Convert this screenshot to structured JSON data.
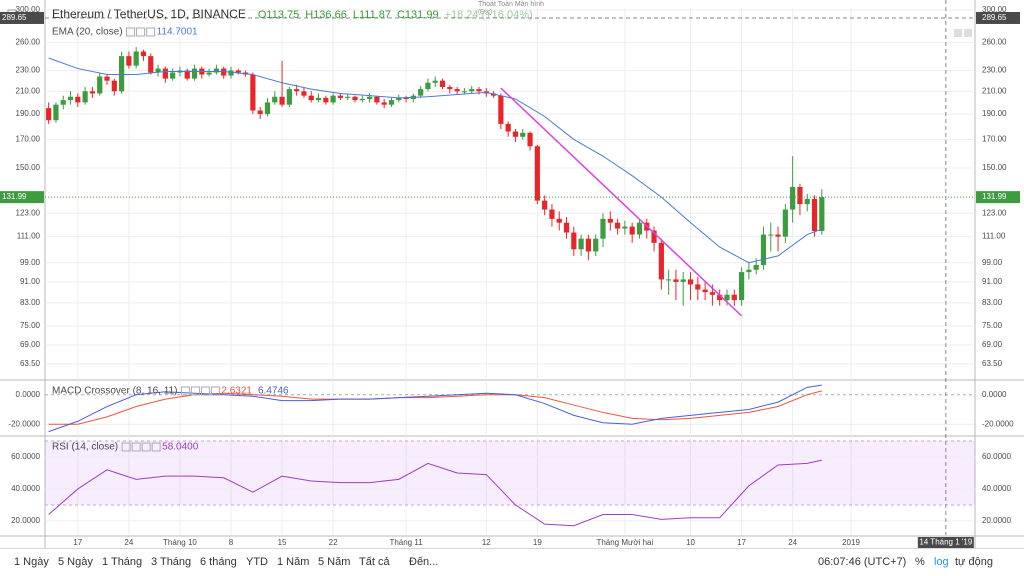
{
  "chart_data": {
    "type": "candlestick",
    "title": "Ethereum / TetherUS, 1D, BINANCE",
    "ohlc_legend": [
      "O113.75",
      "H136.66",
      "L111.87",
      "C131.99"
    ],
    "change": "+18.24 (+16.04%)",
    "tooltip": "Thoát Toàn Màn hình",
    "tooltip_key": "(Esc)",
    "up_color": "#3d9b40",
    "down_color": "#e8262a",
    "log_scale": true,
    "grid": true,
    "xlim": [
      -0.5,
      127
    ],
    "xticks": [
      {
        "value": 4,
        "label": "17"
      },
      {
        "value": 11,
        "label": "24"
      },
      {
        "value": 18,
        "label": "Tháng 10"
      },
      {
        "value": 25,
        "label": "8"
      },
      {
        "value": 32,
        "label": "15"
      },
      {
        "value": 39,
        "label": "22"
      },
      {
        "value": 49,
        "label": "Tháng 11"
      },
      {
        "value": 60,
        "label": "12"
      },
      {
        "value": 67,
        "label": "19"
      },
      {
        "value": 79,
        "label": "Tháng Mười hai"
      },
      {
        "value": 88,
        "label": "10"
      },
      {
        "value": 95,
        "label": "17"
      },
      {
        "value": 102,
        "label": "24"
      },
      {
        "value": 110,
        "label": "2019"
      }
    ],
    "ylim": [
      59.7,
      302.6
    ],
    "yticks": [
      {
        "value": 300,
        "label": "300.00"
      },
      {
        "value": 260,
        "label": "260.00"
      },
      {
        "value": 230,
        "label": "230.00"
      },
      {
        "value": 210,
        "label": "210.00"
      },
      {
        "value": 190,
        "label": "190.00"
      },
      {
        "value": 170,
        "label": "170.00"
      },
      {
        "value": 150,
        "label": "150.00"
      },
      {
        "value": 123,
        "label": "123.00"
      },
      {
        "value": 111,
        "label": "111.00"
      },
      {
        "value": 99,
        "label": "99.00"
      },
      {
        "value": 91,
        "label": "91.00"
      },
      {
        "value": 83,
        "label": "83.00"
      },
      {
        "value": 75,
        "label": "75.00"
      },
      {
        "value": 69,
        "label": "69.00"
      },
      {
        "value": 63.5,
        "label": "63.50"
      }
    ],
    "open": [
      195,
      185,
      198,
      202,
      205,
      200,
      210,
      208,
      224,
      220,
      210,
      245,
      235,
      250,
      245,
      228,
      232,
      222,
      228,
      230,
      222,
      232,
      226,
      228,
      232,
      225,
      230,
      228,
      226,
      193,
      190,
      200,
      205,
      198,
      212,
      210,
      206,
      202,
      204,
      200,
      206,
      204,
      205,
      202,
      203,
      205,
      200,
      198,
      202,
      204,
      203,
      206,
      212,
      218,
      220,
      214,
      212,
      210,
      210,
      212,
      210,
      208,
      206,
      182,
      176,
      172,
      175,
      165,
      130,
      125,
      120,
      118,
      113,
      105,
      110,
      104,
      110,
      120,
      118,
      115,
      116,
      112,
      118,
      114,
      108,
      92,
      92,
      91,
      92,
      90,
      88,
      87,
      86,
      84,
      86,
      84,
      95,
      96,
      98,
      112,
      112,
      111,
      125,
      138,
      128,
      131,
      113.75
    ],
    "high": [
      200,
      200,
      206,
      210,
      208,
      214,
      214,
      228,
      226,
      222,
      250,
      250,
      255,
      252,
      248,
      236,
      234,
      232,
      234,
      232,
      236,
      234,
      232,
      236,
      234,
      234,
      232,
      230,
      228,
      196,
      204,
      210,
      240,
      214,
      216,
      214,
      210,
      208,
      206,
      208,
      208,
      208,
      206,
      206,
      208,
      206,
      203,
      204,
      207,
      206,
      208,
      215,
      222,
      224,
      222,
      216,
      214,
      213,
      215,
      214,
      213,
      210,
      208,
      184,
      178,
      178,
      176,
      166,
      133,
      128,
      124,
      121,
      116,
      112,
      112,
      112,
      123,
      124,
      120,
      119,
      118,
      120,
      120,
      116,
      110,
      96,
      96,
      95,
      95,
      93,
      91,
      90,
      88,
      88,
      88,
      97,
      99,
      101,
      116,
      118,
      116,
      128,
      158,
      140,
      134,
      133,
      136.66
    ],
    "low": [
      182,
      183,
      194,
      198,
      196,
      198,
      204,
      206,
      216,
      206,
      208,
      232,
      232,
      240,
      226,
      224,
      218,
      220,
      224,
      220,
      220,
      222,
      224,
      226,
      222,
      222,
      226,
      224,
      190,
      186,
      188,
      198,
      196,
      196,
      206,
      204,
      200,
      200,
      198,
      198,
      202,
      202,
      200,
      200,
      200,
      198,
      195,
      196,
      200,
      200,
      200,
      204,
      210,
      214,
      212,
      208,
      207,
      207,
      208,
      207,
      205,
      204,
      178,
      172,
      168,
      170,
      162,
      128,
      122,
      116,
      114,
      110,
      102,
      102,
      100,
      102,
      106,
      114,
      112,
      112,
      108,
      110,
      110,
      104,
      88,
      86,
      84,
      82,
      84,
      84,
      84,
      82,
      82,
      82,
      82,
      82,
      92,
      94,
      96,
      104,
      104,
      108,
      118,
      122,
      124,
      111,
      111.87
    ],
    "close": [
      185,
      198,
      202,
      205,
      200,
      210,
      208,
      224,
      220,
      210,
      245,
      235,
      250,
      245,
      228,
      232,
      222,
      228,
      230,
      222,
      232,
      226,
      228,
      232,
      225,
      230,
      228,
      226,
      193,
      190,
      200,
      205,
      198,
      212,
      210,
      206,
      202,
      204,
      200,
      206,
      204,
      205,
      202,
      203,
      205,
      200,
      198,
      202,
      204,
      203,
      206,
      212,
      218,
      220,
      214,
      212,
      210,
      210,
      212,
      210,
      208,
      206,
      182,
      176,
      172,
      175,
      165,
      130,
      125,
      120,
      118,
      113,
      105,
      110,
      104,
      110,
      120,
      118,
      115,
      116,
      112,
      118,
      114,
      108,
      92,
      92,
      91,
      92,
      90,
      88,
      87,
      86,
      84,
      86,
      84,
      95,
      96,
      98,
      112,
      112,
      111,
      125,
      138,
      128,
      131,
      113.75,
      131.99
    ],
    "ema": {
      "name": "EMA (20, close)",
      "color": "#4a7bd0",
      "x": [
        0,
        4,
        8,
        12,
        16,
        20,
        24,
        28,
        32,
        36,
        40,
        44,
        48,
        52,
        56,
        60,
        64,
        68,
        72,
        76,
        80,
        84,
        88,
        92,
        96,
        100,
        104,
        106
      ],
      "values": [
        243,
        232,
        226,
        226,
        229,
        229,
        229,
        226,
        218,
        212,
        208,
        206,
        204,
        205,
        207,
        209,
        203,
        188,
        170,
        158,
        145,
        132,
        118,
        106,
        99,
        102,
        112,
        114.7001
      ]
    },
    "trendline": {
      "color": "#e040e0",
      "x": [
        62,
        95
      ],
      "y": [
        213,
        78.4
      ]
    },
    "crosshair": {
      "x": 123,
      "x_label": "14 Tháng 1 '19",
      "y": 289.65
    },
    "macd": {
      "name": "MACD Crossover (8, 16, 11)",
      "x": [
        0,
        4,
        8,
        12,
        16,
        20,
        24,
        28,
        32,
        36,
        40,
        44,
        48,
        52,
        56,
        60,
        64,
        68,
        72,
        76,
        80,
        84,
        88,
        92,
        96,
        100,
        104,
        106
      ],
      "series": [
        {
          "color": "#e8573f",
          "values": [
            -20,
            -20,
            -15,
            -8,
            -3,
            0,
            1,
            0,
            -1,
            -3,
            -3,
            -3,
            -2,
            -2,
            -1,
            0,
            0,
            -2,
            -7,
            -12,
            -16,
            -17,
            -16,
            -14,
            -12,
            -8,
            0,
            2.6321
          ]
        },
        {
          "color": "#4a5fd8",
          "values": [
            -25,
            -18,
            -8,
            0,
            2,
            1,
            0,
            -1,
            -4,
            -4,
            -3,
            -3,
            -2,
            -1,
            0,
            1,
            0,
            -6,
            -14,
            -19,
            -20,
            -16,
            -14,
            -12,
            -10,
            -5,
            5,
            6.4746
          ]
        }
      ],
      "ylim": [
        -27.3,
        9.3
      ],
      "yticks": [
        {
          "value": 0,
          "label": "0.0000"
        },
        {
          "value": -20,
          "label": "-20.0000"
        }
      ]
    },
    "rsi": {
      "name": "RSI (14, close)",
      "color": "#9c3fc0",
      "legend_label": "58.0400",
      "x": [
        0,
        4,
        8,
        12,
        16,
        20,
        24,
        28,
        32,
        36,
        40,
        44,
        48,
        52,
        56,
        60,
        64,
        68,
        72,
        76,
        80,
        84,
        88,
        92,
        96,
        100,
        104,
        106
      ],
      "values": [
        24,
        40,
        52,
        46,
        48,
        48,
        47,
        38,
        48,
        45,
        44,
        44,
        46,
        56,
        50,
        49,
        30,
        18,
        17,
        24,
        24,
        21,
        22,
        22,
        42,
        55,
        56,
        58.04
      ],
      "band": [
        30,
        70
      ],
      "ylim": [
        11.2,
        72.5
      ],
      "yticks": [
        {
          "value": 60,
          "label": "60.0000"
        },
        {
          "value": 40,
          "label": "40.0000"
        },
        {
          "value": 20,
          "label": "20.0000"
        }
      ]
    }
  },
  "toolbar": {
    "ranges": [
      "1 Ngày",
      "5 Ngày",
      "1 Tháng",
      "3 Tháng",
      "6 tháng",
      "YTD",
      "1 Năm",
      "5 Năm",
      "Tất cả"
    ],
    "goto": "Đến...",
    "clock": "06:07:46 (UTC+7)",
    "percent": "%",
    "log": "log",
    "auto": "tự động"
  }
}
